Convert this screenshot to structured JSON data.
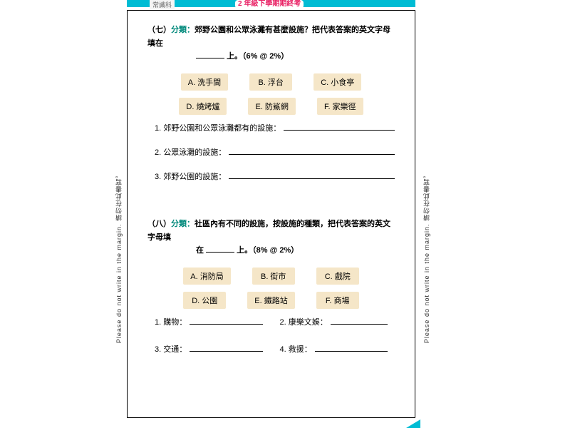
{
  "header": {
    "left_label": "常識科",
    "bubble": "2 年級下學期期終考",
    "margin_text": "Please do not write in the margin. 請勿在此書寫。"
  },
  "section7": {
    "num": "（七）",
    "type": "分類：",
    "prompt_line1": "郊野公園和公眾泳灘有甚麼設施？把代表答案的英文字母填在",
    "prompt_line2_prefix": "",
    "prompt_line2_suffix": "上。（6%  @  2%）",
    "options": {
      "a": "A. 洗手間",
      "b": "B. 浮台",
      "c": "C. 小食亭",
      "d": "D. 燒烤爐",
      "e": "E. 防鯊網",
      "f": "F. 家樂徑"
    },
    "q1": "1. 郊野公園和公眾泳灘都有的設施：",
    "q2": "2. 公眾泳灘的設施：",
    "q3": "3. 郊野公園的設施："
  },
  "section8": {
    "num": "（八）",
    "type": "分類：",
    "prompt_line1": "社區內有不同的設施，按設施的種類，把代表答案的英文字母填",
    "prompt_line2_prefix": "在 ",
    "prompt_line2_suffix": " 上。（8%  @  2%）",
    "options": {
      "a": "A. 消防局",
      "b": "B. 街市",
      "c": "C. 戲院",
      "d": "D. 公園",
      "e": "E. 鐵路站",
      "f": "F. 商場"
    },
    "q1": "1. 購物：",
    "q2": "2. 康樂文娛：",
    "q3": "3. 交通：",
    "q4": "4. 救援："
  },
  "colors": {
    "accent_cyan": "#00bcd4",
    "accent_pink": "#e91e63",
    "type_green": "#00897b",
    "option_bg": "#f5e6c8",
    "text": "#000000"
  }
}
